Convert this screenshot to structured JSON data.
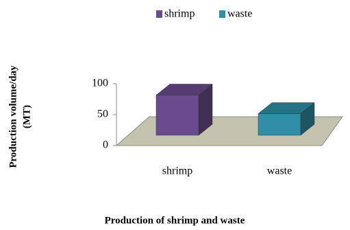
{
  "chart_data": {
    "type": "bar3d",
    "x_label": "Production of shrimp and waste",
    "y_label_lines": [
      "Production volume/day",
      "(MT)"
    ],
    "categories": [
      "shrimp",
      "waste"
    ],
    "series": [
      {
        "name": "shrimp",
        "color": "#6a4c8e",
        "values": [
          65,
          null
        ]
      },
      {
        "name": "waste",
        "color": "#2f8fa6",
        "values": [
          null,
          35
        ]
      }
    ],
    "ylim": [
      0,
      100
    ],
    "yticks": [
      0,
      50,
      100
    ],
    "legend": "top"
  }
}
